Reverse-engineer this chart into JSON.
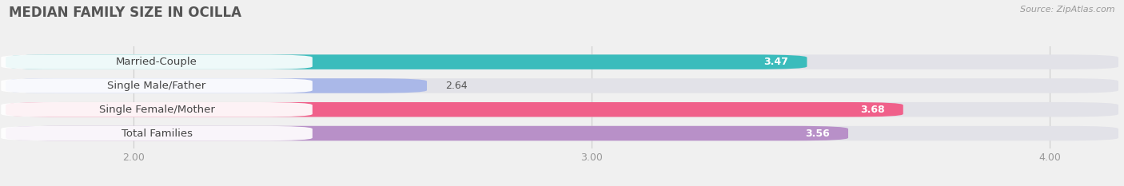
{
  "title": "MEDIAN FAMILY SIZE IN OCILLA",
  "source": "Source: ZipAtlas.com",
  "categories": [
    "Married-Couple",
    "Single Male/Father",
    "Single Female/Mother",
    "Total Families"
  ],
  "values": [
    3.47,
    2.64,
    3.68,
    3.56
  ],
  "bar_colors": [
    "#3bbcbc",
    "#aab8e8",
    "#f0608a",
    "#b890c8"
  ],
  "label_colors": [
    "white",
    "black",
    "white",
    "white"
  ],
  "xlim_left": 1.72,
  "xlim_right": 4.15,
  "xticks": [
    2.0,
    3.0,
    4.0
  ],
  "xtick_labels": [
    "2.00",
    "3.00",
    "4.00"
  ],
  "bar_height": 0.62,
  "background_color": "#f0f0f0",
  "bar_background_color": "#e2e2e8",
  "title_fontsize": 12,
  "label_fontsize": 9.5,
  "value_fontsize": 9
}
